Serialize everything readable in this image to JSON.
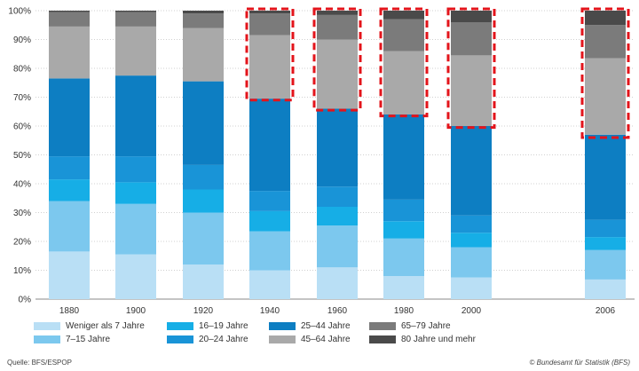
{
  "chart_data": {
    "type": "bar",
    "stacked": true,
    "categories": [
      "1880",
      "1900",
      "1920",
      "1940",
      "1960",
      "1980",
      "2000",
      "2006"
    ],
    "y_tick_labels": [
      "0%",
      "10%",
      "20%",
      "30%",
      "40%",
      "50%",
      "60%",
      "70%",
      "80%",
      "90%",
      "100%"
    ],
    "ylim": [
      0,
      100
    ],
    "grid": true,
    "legend_position": "bottom",
    "series": [
      {
        "name": "Weniger als 7 Jahre",
        "color": "#b9dff5",
        "values": [
          16.5,
          15.5,
          12,
          10,
          11,
          8,
          7.5,
          6.8
        ]
      },
      {
        "name": "7–15 Jahre",
        "color": "#7cc8ee",
        "values": [
          17.5,
          17.5,
          18,
          13.5,
          14.5,
          13,
          10.5,
          10.2
        ]
      },
      {
        "name": "16–19 Jahre",
        "color": "#16aee6",
        "values": [
          7.5,
          7.5,
          8,
          7,
          6.5,
          6,
          5,
          4.5
        ]
      },
      {
        "name": "20–24 Jahre",
        "color": "#1994d7",
        "values": [
          8,
          9,
          8.5,
          7,
          7,
          7.5,
          6,
          6
        ]
      },
      {
        "name": "25–44 Jahre",
        "color": "#0d7ec2",
        "values": [
          27,
          28,
          29,
          32,
          27,
          29.5,
          31,
          29.5
        ]
      },
      {
        "name": "45–64 Jahre",
        "color": "#a9a9a9",
        "values": [
          18,
          17,
          18.5,
          22,
          24,
          22,
          24.5,
          26.5
        ]
      },
      {
        "name": "65–79 Jahre",
        "color": "#7b7b7b",
        "values": [
          5,
          5,
          5,
          7.5,
          8.5,
          11,
          11.5,
          11.5
        ]
      },
      {
        "name": "80 Jahre und mehr",
        "color": "#4a4a4a",
        "values": [
          0.5,
          0.5,
          1,
          1,
          1.5,
          3,
          4,
          5
        ]
      }
    ],
    "highlight_dashed_boxes": [
      {
        "category": "1940",
        "from": 69,
        "to": 100
      },
      {
        "category": "1960",
        "from": 65.5,
        "to": 100
      },
      {
        "category": "1980",
        "from": 63.5,
        "to": 100
      },
      {
        "category": "2000",
        "from": 59.5,
        "to": 100
      },
      {
        "category": "2006",
        "from": 56,
        "to": 100
      }
    ],
    "highlight_color": "#e3141b"
  },
  "footer": {
    "source": "Quelle: BFS/ESPOP",
    "copyright": "© Bundesamt für Statistik (BFS)"
  }
}
